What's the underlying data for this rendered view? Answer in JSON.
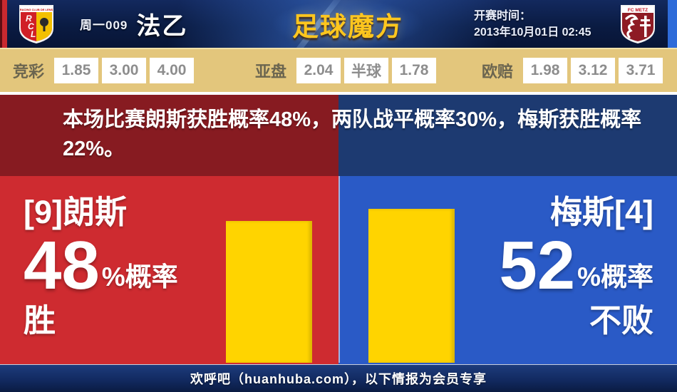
{
  "colors": {
    "home_red": "#ce2b30",
    "home_dark_red": "#871b21",
    "away_blue": "#2a5ac6",
    "away_dark_blue": "#1d3a71",
    "bar_yellow": "#ffd400",
    "odds_bar_tan": "#e3c67c",
    "header_navy": "#0a1b42",
    "logo_gold": "#ffc61e"
  },
  "header": {
    "home_crest": {
      "banner": "RACING CLUB DE LENS",
      "abbr": "RCL"
    },
    "away_crest": {
      "banner": "FC METZ"
    },
    "match_code": "周一009",
    "league": "法乙",
    "site_logo": "足球魔方",
    "kickoff_label": "开赛时间：",
    "kickoff_time": "2013年10月01日 02:45"
  },
  "odds": {
    "jingcai_label": "竞彩",
    "jingcai_values": [
      "1.85",
      "3.00",
      "4.00"
    ],
    "yapan_label": "亚盘",
    "yapan_values": [
      "2.04",
      "半球",
      "1.78"
    ],
    "oupei_label": "欧赔",
    "oupei_values": [
      "1.98",
      "3.12",
      "3.71"
    ]
  },
  "summary_text": "本场比赛朗斯获胜概率48%，两队战平概率30%，梅斯获胜概率22%。",
  "home_panel": {
    "team": "[9]朗斯",
    "probability": "48",
    "suffix": "%概率",
    "outcome": "胜",
    "bar_percent": 48
  },
  "away_panel": {
    "team": "梅斯[4]",
    "probability": "52",
    "suffix": "%概率",
    "outcome": "不败",
    "bar_percent": 52
  },
  "footer_text": "欢呼吧（huanhuba.com），以下情报为会员专享",
  "chart_data": {
    "type": "bar",
    "categories": [
      "朗斯 胜",
      "梅斯 不败"
    ],
    "values": [
      48,
      52
    ],
    "unit": "%",
    "bar_color": "#ffd400",
    "ylim": [
      0,
      100
    ]
  }
}
